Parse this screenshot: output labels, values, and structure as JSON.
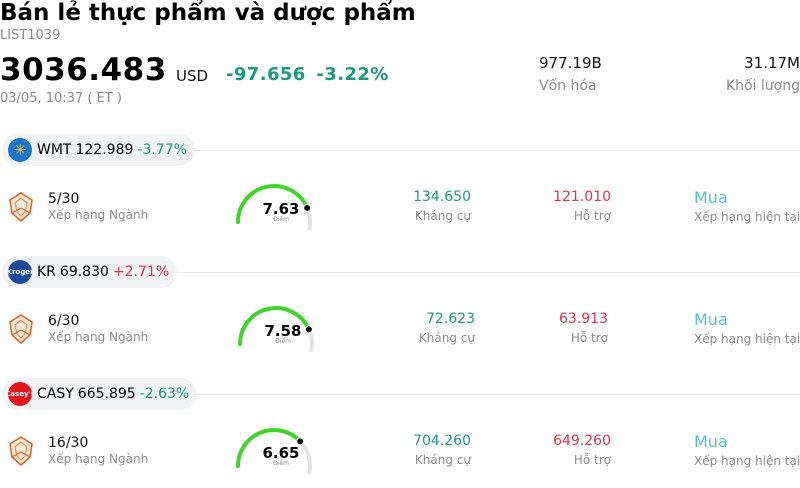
{
  "header": {
    "title": "Bán lẻ thực phẩm và dược phẩm",
    "code": "LIST1039",
    "price": "3036.483",
    "currency": "USD",
    "change": "-97.656",
    "change_pct": "-3.22%",
    "timestamp": "03/05, 10:37  ( ET )",
    "market_cap_value": "977.19B",
    "market_cap_label": "Vốn hóa",
    "volume_value": "31.17M",
    "volume_label": "Khối lượng"
  },
  "stocks": [
    {
      "symbol": "WMT",
      "price": "122.989",
      "change_pct": "-3.77%",
      "direction": "down",
      "logo_color": "#1a75cf",
      "logo_icon": "walmart-spark-icon",
      "rank": "5/30",
      "rank_label": "Xếp hạng Ngành",
      "score": "7.63",
      "score_value": 7.63,
      "score_label": "Điểm",
      "resistance": "134.650",
      "resistance_label": "Kháng cự",
      "support": "121.010",
      "support_label": "Hỗ trợ",
      "rating": "Mua",
      "rating_label": "Xếp hạng hiện tại"
    },
    {
      "symbol": "KR",
      "price": "69.830",
      "change_pct": "+2.71%",
      "direction": "up",
      "logo_color": "#1b4a9c",
      "logo_icon": "kroger-logo-icon",
      "logo_text": "Kroger",
      "rank": "6/30",
      "rank_label": "Xếp hạng Ngành",
      "score": "7.58",
      "score_value": 7.58,
      "score_label": "Điểm",
      "resistance": "72.623",
      "resistance_label": "Kháng cự",
      "support": "63.913",
      "support_label": "Hỗ trợ",
      "rating": "Mua",
      "rating_label": "Xếp hạng hiện tại"
    },
    {
      "symbol": "CASY",
      "price": "665.895",
      "change_pct": "-2.63%",
      "direction": "down",
      "logo_color": "#e3141b",
      "logo_icon": "caseys-logo-icon",
      "logo_text": "Casey's",
      "rank": "16/30",
      "rank_label": "Xếp hạng Ngành",
      "score": "6.65",
      "score_value": 6.65,
      "score_label": "Điểm",
      "resistance": "704.260",
      "resistance_label": "Kháng cự",
      "support": "649.260",
      "support_label": "Hỗ trợ",
      "rating": "Mua",
      "rating_label": "Xếp hạng hiện tại"
    }
  ],
  "colors": {
    "up": "#e5304a",
    "down": "#1a9b7f",
    "gauge_fill": "#3fd629",
    "gauge_track": "#e3e4ea",
    "rating": "#4fc6c1"
  }
}
